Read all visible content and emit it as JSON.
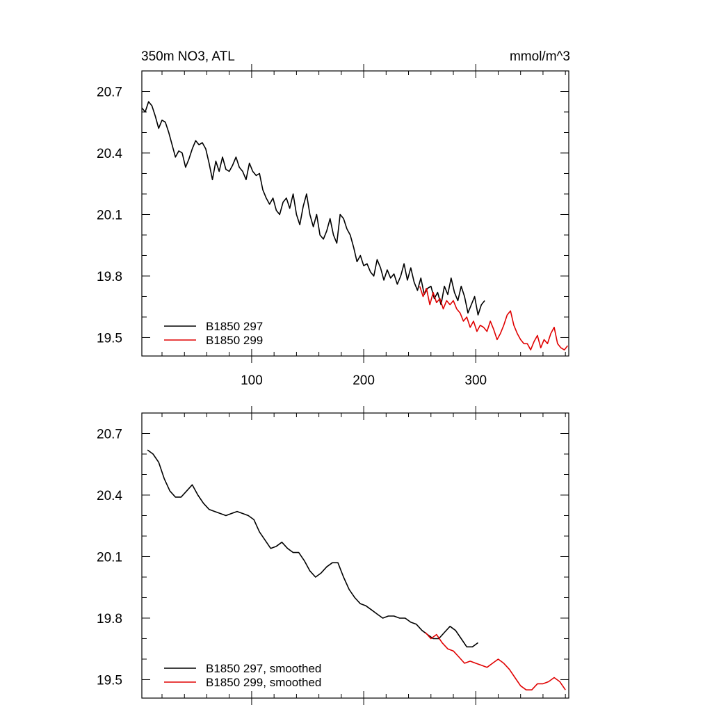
{
  "figure": {
    "title": "350m NO3, ATL",
    "units": "mmol/m^3"
  },
  "colors": {
    "series_297": "#000000",
    "series_299": "#e00000",
    "axis": "#000000"
  },
  "chart_data": [
    {
      "type": "line",
      "title": "350m NO3, ATL",
      "units": "mmol/m^3",
      "xlabel": "",
      "ylabel": "",
      "xlim": [
        2,
        383
      ],
      "ylim": [
        19.41,
        20.8
      ],
      "x_ticks": [
        100,
        200,
        300
      ],
      "y_ticks": [
        19.5,
        19.8,
        20.1,
        20.4,
        20.7
      ],
      "x_tick_labels": [
        "100",
        "200",
        "300"
      ],
      "y_tick_labels": [
        "19.5",
        "19.8",
        "20.1",
        "20.4",
        "20.7"
      ],
      "legend_position": "bottom-left",
      "series": [
        {
          "name": "B1850 297",
          "color": "#000000",
          "x": [
            2,
            5,
            8,
            11,
            14,
            17,
            20,
            23,
            26,
            29,
            32,
            35,
            38,
            41,
            44,
            47,
            50,
            53,
            56,
            59,
            62,
            65,
            68,
            71,
            74,
            77,
            80,
            83,
            86,
            89,
            92,
            95,
            98,
            101,
            104,
            107,
            110,
            113,
            116,
            119,
            122,
            125,
            128,
            131,
            134,
            137,
            140,
            143,
            146,
            149,
            152,
            155,
            158,
            161,
            164,
            167,
            170,
            173,
            176,
            179,
            182,
            185,
            188,
            191,
            194,
            197,
            200,
            203,
            206,
            209,
            212,
            215,
            218,
            221,
            224,
            227,
            230,
            233,
            236,
            239,
            242,
            245,
            248,
            251,
            254,
            257,
            260,
            263,
            266,
            269,
            272,
            275,
            278,
            281,
            284,
            287,
            290,
            293,
            296,
            299,
            302,
            305,
            308
          ],
          "y": [
            20.62,
            20.6,
            20.65,
            20.63,
            20.58,
            20.52,
            20.56,
            20.55,
            20.5,
            20.44,
            20.38,
            20.41,
            20.4,
            20.33,
            20.37,
            20.42,
            20.46,
            20.44,
            20.45,
            20.42,
            20.35,
            20.27,
            20.36,
            20.31,
            20.38,
            20.32,
            20.31,
            20.34,
            20.38,
            20.33,
            20.31,
            20.27,
            20.35,
            20.31,
            20.29,
            20.3,
            20.22,
            20.18,
            20.15,
            20.18,
            20.12,
            20.1,
            20.16,
            20.18,
            20.13,
            20.2,
            20.1,
            20.05,
            20.14,
            20.2,
            20.1,
            20.04,
            20.1,
            20.0,
            19.98,
            20.02,
            20.08,
            20.0,
            19.96,
            20.1,
            20.08,
            20.03,
            20.0,
            19.94,
            19.87,
            19.9,
            19.85,
            19.86,
            19.82,
            19.8,
            19.88,
            19.84,
            19.78,
            19.83,
            19.79,
            19.81,
            19.76,
            19.8,
            19.86,
            19.78,
            19.84,
            19.77,
            19.73,
            19.79,
            19.71,
            19.74,
            19.75,
            19.69,
            19.72,
            19.66,
            19.75,
            19.71,
            19.79,
            19.72,
            19.68,
            19.75,
            19.7,
            19.62,
            19.66,
            19.7,
            19.61,
            19.66,
            19.68
          ]
        },
        {
          "name": "B1850 299",
          "color": "#e00000",
          "x": [
            250,
            253,
            256,
            259,
            262,
            265,
            268,
            271,
            274,
            277,
            280,
            283,
            286,
            289,
            292,
            295,
            298,
            301,
            304,
            307,
            310,
            313,
            316,
            319,
            322,
            325,
            328,
            331,
            334,
            337,
            340,
            343,
            346,
            349,
            352,
            355,
            358,
            361,
            364,
            367,
            370,
            373,
            376,
            379,
            382
          ],
          "y": [
            19.75,
            19.7,
            19.74,
            19.66,
            19.72,
            19.67,
            19.69,
            19.64,
            19.68,
            19.66,
            19.68,
            19.64,
            19.62,
            19.58,
            19.6,
            19.55,
            19.58,
            19.53,
            19.56,
            19.55,
            19.53,
            19.58,
            19.54,
            19.49,
            19.52,
            19.56,
            19.61,
            19.63,
            19.56,
            19.52,
            19.49,
            19.47,
            19.47,
            19.44,
            19.48,
            19.51,
            19.45,
            19.49,
            19.47,
            19.52,
            19.55,
            19.47,
            19.45,
            19.44,
            19.46
          ]
        }
      ]
    },
    {
      "type": "line",
      "title": "",
      "xlabel": "",
      "ylabel": "",
      "xlim": [
        2,
        383
      ],
      "ylim": [
        19.41,
        20.8
      ],
      "x_ticks": [
        100,
        200,
        300
      ],
      "y_ticks": [
        19.5,
        19.8,
        20.1,
        20.4,
        20.7
      ],
      "x_tick_labels": [],
      "y_tick_labels": [
        "19.5",
        "19.8",
        "20.1",
        "20.4",
        "20.7"
      ],
      "legend_position": "bottom-left",
      "series": [
        {
          "name": "B1850 297, smoothed",
          "color": "#000000",
          "x": [
            7,
            12,
            17,
            22,
            27,
            32,
            37,
            42,
            47,
            52,
            57,
            62,
            67,
            72,
            77,
            82,
            87,
            92,
            97,
            102,
            107,
            112,
            117,
            122,
            127,
            132,
            137,
            142,
            147,
            152,
            157,
            162,
            167,
            172,
            177,
            182,
            187,
            192,
            197,
            202,
            207,
            212,
            217,
            222,
            227,
            232,
            237,
            242,
            247,
            252,
            257,
            262,
            267,
            272,
            277,
            282,
            287,
            292,
            297,
            302
          ],
          "y": [
            20.62,
            20.6,
            20.56,
            20.48,
            20.42,
            20.39,
            20.39,
            20.42,
            20.45,
            20.4,
            20.36,
            20.33,
            20.32,
            20.31,
            20.3,
            20.31,
            20.32,
            20.31,
            20.3,
            20.28,
            20.22,
            20.18,
            20.14,
            20.15,
            20.17,
            20.14,
            20.12,
            20.12,
            20.08,
            20.03,
            20.0,
            20.02,
            20.05,
            20.07,
            20.07,
            20.0,
            19.94,
            19.9,
            19.87,
            19.86,
            19.84,
            19.82,
            19.8,
            19.81,
            19.81,
            19.8,
            19.8,
            19.78,
            19.77,
            19.74,
            19.72,
            19.7,
            19.7,
            19.73,
            19.76,
            19.74,
            19.7,
            19.66,
            19.66,
            19.68
          ]
        },
        {
          "name": "B1850 299, smoothed",
          "color": "#e00000",
          "x": [
            255,
            260,
            265,
            270,
            275,
            280,
            285,
            290,
            295,
            300,
            305,
            310,
            315,
            320,
            325,
            330,
            335,
            340,
            345,
            350,
            355,
            360,
            365,
            370,
            375,
            380
          ],
          "y": [
            19.73,
            19.7,
            19.72,
            19.68,
            19.65,
            19.64,
            19.61,
            19.58,
            19.59,
            19.58,
            19.57,
            19.56,
            19.58,
            19.6,
            19.58,
            19.55,
            19.51,
            19.47,
            19.45,
            19.45,
            19.48,
            19.48,
            19.49,
            19.51,
            19.49,
            19.45
          ]
        }
      ]
    }
  ]
}
